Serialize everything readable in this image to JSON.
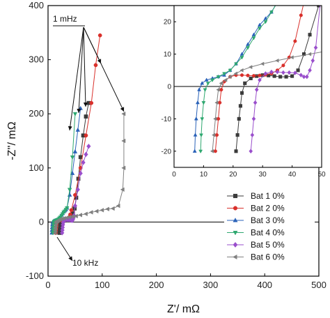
{
  "chart_data": {
    "type": "scatter",
    "xlabel": "Z'/ mΩ",
    "ylabel": "-Z''/ mΩ",
    "xlim": [
      0,
      500
    ],
    "ylim": [
      -100,
      400
    ],
    "xticks": [
      "0",
      "100",
      "200",
      "300",
      "400",
      "500"
    ],
    "yticks": [
      "-100",
      "0",
      "100",
      "200",
      "300",
      "400"
    ],
    "annotations": {
      "low_freq": "1 mHz",
      "high_freq": "10 kHz"
    },
    "legend_position": "bottom-right",
    "series": [
      {
        "name": "Bat 1 0%",
        "color": "#3a3a3a",
        "marker": "square",
        "x": [
          21,
          21.5,
          22,
          22.5,
          23,
          24,
          26,
          28,
          30,
          32,
          34,
          36,
          38,
          40,
          42,
          44,
          46,
          49,
          52,
          56,
          60,
          65,
          70,
          75
        ],
        "y": [
          -20,
          -15,
          -10,
          -6,
          -2,
          1,
          2.5,
          3.2,
          3.5,
          3.4,
          3.2,
          3.0,
          3.0,
          3.2,
          5,
          10,
          16,
          25,
          45,
          80,
          120,
          160,
          195,
          220
        ]
      },
      {
        "name": "Bat 2 0%",
        "color": "#d9302b",
        "marker": "circle",
        "x": [
          14,
          14.5,
          15,
          15.5,
          16,
          17,
          19,
          21,
          23,
          25,
          27,
          29,
          31,
          33,
          35,
          37,
          39,
          41,
          43,
          50,
          60,
          70,
          80,
          88,
          96
        ],
        "y": [
          -20,
          -15,
          -10,
          -5,
          -1,
          1.5,
          3,
          3.5,
          3.5,
          3.4,
          3.3,
          3.4,
          3.6,
          4,
          5,
          6.5,
          9,
          14,
          22,
          50,
          100,
          160,
          220,
          290,
          345
        ]
      },
      {
        "name": "Bat 3 0%",
        "color": "#2a62b8",
        "marker": "triangle-up",
        "x": [
          7,
          7.2,
          7.5,
          8,
          8.5,
          9.5,
          11,
          13,
          15,
          17,
          19,
          21,
          23,
          25,
          27,
          29,
          31,
          33,
          35,
          40,
          45,
          50,
          55,
          60
        ],
        "y": [
          -20,
          -15,
          -10,
          -5,
          -1,
          1,
          2,
          2.5,
          3,
          3.5,
          5,
          7,
          10,
          13,
          16,
          19,
          21,
          23,
          26,
          50,
          90,
          130,
          170,
          210
        ]
      },
      {
        "name": "Bat 4 0%",
        "color": "#2fa870",
        "marker": "triangle-down",
        "x": [
          9,
          9.2,
          9.5,
          10,
          10.5,
          11.5,
          13,
          15,
          17,
          19,
          21,
          23,
          25,
          27,
          29,
          31,
          33,
          35,
          40,
          45,
          50
        ],
        "y": [
          -20,
          -15,
          -10,
          -5,
          -1,
          1,
          2,
          3,
          4,
          5,
          7,
          9,
          12,
          15,
          18,
          20,
          23,
          26,
          60,
          120,
          200
        ]
      },
      {
        "name": "Bat 5 0%",
        "color": "#9a4fcc",
        "marker": "diamond",
        "x": [
          26,
          26.5,
          27,
          27.5,
          28,
          29,
          31,
          33,
          35,
          37,
          39,
          41,
          43,
          44,
          45,
          46,
          47,
          48,
          50,
          55,
          60,
          65,
          70,
          75
        ],
        "y": [
          -20,
          -15,
          -10,
          -5,
          -1,
          2,
          4,
          4.5,
          4.5,
          4.3,
          4.3,
          4.2,
          3.5,
          3.0,
          3.0,
          5,
          8,
          12,
          30,
          60,
          90,
          110,
          125,
          140
        ]
      },
      {
        "name": "Bat 6 0%",
        "color": "#808080",
        "marker": "triangle-left",
        "x": [
          13,
          13.5,
          14,
          14.5,
          15,
          16,
          17.5,
          19,
          21,
          23,
          26,
          30,
          35,
          40,
          46,
          52,
          60,
          70,
          80,
          90,
          100,
          110,
          120,
          130,
          138,
          140,
          140,
          140
        ],
        "y": [
          -20,
          -15,
          -10,
          -5,
          -1,
          1,
          2,
          3,
          4,
          5,
          6,
          7,
          8,
          9,
          10,
          11,
          13,
          15,
          18,
          20,
          22,
          24,
          25,
          30,
          60,
          100,
          150,
          200
        ]
      }
    ],
    "inset": {
      "xlim": [
        0,
        50
      ],
      "ylim": [
        -25,
        25
      ],
      "xticks": [
        "0",
        "10",
        "20",
        "30",
        "40",
        "50"
      ],
      "yticks": [
        "-20",
        "-10",
        "0",
        "10",
        "20"
      ]
    }
  }
}
